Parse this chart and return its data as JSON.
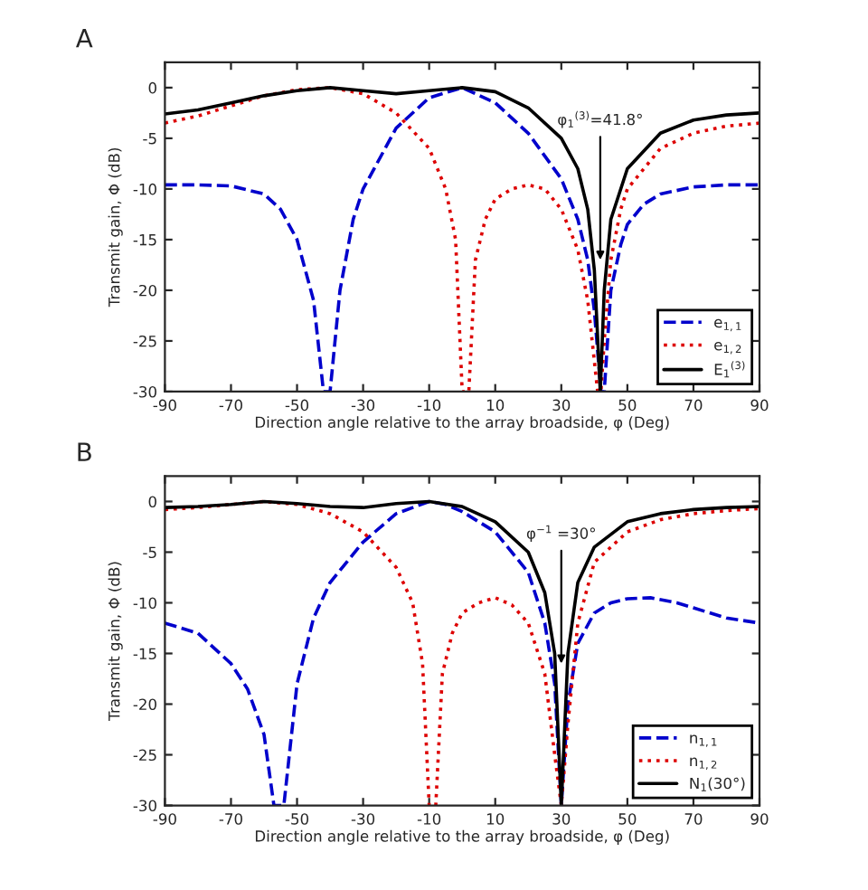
{
  "chart_data": [
    {
      "type": "line",
      "title": "A",
      "xlabel": "Direction angle relative to the array broadside, φ (Deg)",
      "ylabel": "Transmit gain, Φ (dB)",
      "xlim": [
        -90,
        90
      ],
      "ylim": [
        -30,
        2.5
      ],
      "xticks": [
        -90,
        -70,
        -50,
        -30,
        -10,
        10,
        30,
        50,
        70,
        90
      ],
      "yticks": [
        -30,
        -25,
        -20,
        -15,
        -10,
        -5,
        0
      ],
      "grid": false,
      "legend": "bottom right",
      "annotations": [
        {
          "text": "φ$_{1}$$^{(3)}$=41.8°",
          "x": 41.8,
          "y": -17
        }
      ],
      "series": [
        {
          "name": "e$_{1,1}$",
          "color": "#0000cc",
          "line_style": "dashed",
          "x": [
            -90,
            -80,
            -70,
            -60,
            -55,
            -50,
            -45,
            -42,
            -40,
            -37,
            -33,
            -30,
            -20,
            -10,
            0,
            10,
            20,
            30,
            35,
            38,
            40,
            42,
            43,
            45,
            48,
            50,
            55,
            60,
            70,
            80,
            90
          ],
          "values": [
            -9.6,
            -9.6,
            -9.7,
            -10.5,
            -12,
            -15,
            -21,
            -30,
            -30,
            -20,
            -13,
            -10,
            -4,
            -1,
            0,
            -1.5,
            -4.5,
            -9,
            -13,
            -17,
            -22,
            -30,
            -30,
            -20,
            -15.5,
            -13.5,
            -11.5,
            -10.5,
            -9.8,
            -9.6,
            -9.6
          ]
        },
        {
          "name": "e$_{1,2}$",
          "color": "#dd0000",
          "line_style": "dotted",
          "x": [
            -90,
            -80,
            -70,
            -60,
            -50,
            -40,
            -30,
            -20,
            -10,
            -5,
            -2,
            0,
            2,
            4,
            7,
            10,
            15,
            20,
            25,
            30,
            35,
            38,
            41,
            42,
            43,
            45,
            48,
            50,
            55,
            60,
            70,
            80,
            90
          ],
          "values": [
            -3.5,
            -2.8,
            -1.8,
            -0.8,
            -0.2,
            0,
            -0.6,
            -2.5,
            -6,
            -10,
            -15,
            -30,
            -30,
            -17,
            -13,
            -11,
            -10,
            -9.6,
            -10,
            -12,
            -16,
            -21,
            -30,
            -30,
            -25,
            -17,
            -12,
            -10,
            -8,
            -6,
            -4.5,
            -3.8,
            -3.5
          ]
        },
        {
          "name": "E$_{1}$$^{(3)}$",
          "color": "#000000",
          "line_style": "solid",
          "x": [
            -90,
            -80,
            -70,
            -60,
            -50,
            -40,
            -30,
            -20,
            -10,
            0,
            10,
            20,
            30,
            35,
            38,
            40,
            41.8,
            43,
            45,
            50,
            60,
            70,
            80,
            90
          ],
          "values": [
            -2.6,
            -2.2,
            -1.5,
            -0.8,
            -0.3,
            0,
            -0.3,
            -0.6,
            -0.3,
            0,
            -0.4,
            -2,
            -5,
            -8,
            -12,
            -18,
            -30,
            -20,
            -13,
            -8,
            -4.5,
            -3.2,
            -2.7,
            -2.5
          ]
        }
      ]
    },
    {
      "type": "line",
      "title": "B",
      "xlabel": "Direction angle relative to the array broadside, φ (Deg)",
      "ylabel": "Transmit gain, Φ (dB)",
      "xlim": [
        -90,
        90
      ],
      "ylim": [
        -30,
        2.5
      ],
      "xticks": [
        -90,
        -70,
        -50,
        -30,
        -10,
        10,
        30,
        50,
        70,
        90
      ],
      "yticks": [
        -30,
        -25,
        -20,
        -15,
        -10,
        -5,
        0
      ],
      "grid": false,
      "legend": "bottom right",
      "annotations": [
        {
          "text": "φ$^{−1}$ =30°",
          "x": 30,
          "y": -16
        }
      ],
      "series": [
        {
          "name": "n$_{1,1}$",
          "color": "#0000cc",
          "line_style": "dashed",
          "x": [
            -90,
            -80,
            -70,
            -65,
            -60,
            -57,
            -54,
            -50,
            -45,
            -40,
            -30,
            -20,
            -10,
            -5,
            0,
            10,
            20,
            25,
            28,
            30,
            32,
            35,
            40,
            45,
            50,
            57,
            65,
            70,
            80,
            90
          ],
          "values": [
            -12,
            -13,
            -16,
            -18.5,
            -23,
            -30,
            -30,
            -18,
            -11.5,
            -8,
            -4,
            -1.2,
            0,
            -0.3,
            -1,
            -3,
            -7,
            -12,
            -18,
            -30,
            -20,
            -14,
            -11,
            -10,
            -9.6,
            -9.5,
            -10,
            -10.5,
            -11.5,
            -12
          ]
        },
        {
          "name": "n$_{1,2}$",
          "color": "#dd0000",
          "line_style": "dotted",
          "x": [
            -90,
            -80,
            -70,
            -60,
            -50,
            -40,
            -30,
            -20,
            -15,
            -12,
            -10,
            -8,
            -6,
            -3,
            0,
            5,
            10,
            15,
            20,
            25,
            28,
            30,
            32,
            35,
            40,
            50,
            60,
            70,
            80,
            90
          ],
          "values": [
            -0.8,
            -0.6,
            -0.3,
            0,
            -0.3,
            -1.2,
            -3,
            -6.5,
            -10,
            -16,
            -30,
            -30,
            -17,
            -13,
            -11,
            -10,
            -9.5,
            -10.2,
            -12,
            -17,
            -25,
            -30,
            -22,
            -12,
            -6,
            -3,
            -1.8,
            -1.2,
            -0.9,
            -0.7
          ]
        },
        {
          "name": "N$_{1}$(30°)",
          "color": "#000000",
          "line_style": "solid",
          "x": [
            -90,
            -80,
            -70,
            -60,
            -50,
            -40,
            -30,
            -20,
            -10,
            0,
            10,
            20,
            25,
            28,
            30,
            32,
            35,
            40,
            50,
            60,
            70,
            80,
            90
          ],
          "values": [
            -0.6,
            -0.5,
            -0.3,
            0,
            -0.2,
            -0.5,
            -0.6,
            -0.2,
            0,
            -0.5,
            -2,
            -5,
            -9,
            -15,
            -30,
            -15,
            -8,
            -4.5,
            -2,
            -1.2,
            -0.8,
            -0.6,
            -0.5
          ]
        }
      ]
    }
  ]
}
